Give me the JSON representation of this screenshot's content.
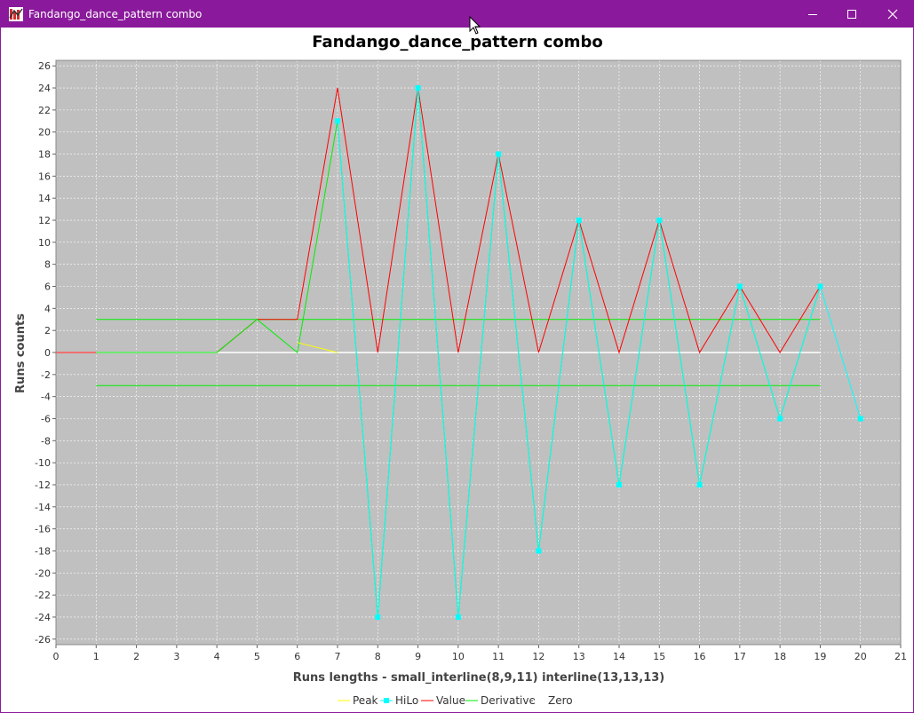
{
  "window": {
    "title": "Fandango_dance_pattern combo",
    "app_icon": "jfreechart-app-icon",
    "controls": [
      "minimize-icon",
      "maximize-icon",
      "close-icon"
    ],
    "titlebar_color": "#8a1a9b"
  },
  "chart_data": {
    "type": "line",
    "title": "Fandango_dance_pattern combo",
    "xlabel": "Runs lengths -  small_interline(8,9,11) interline(13,13,13)",
    "ylabel": "Runs counts",
    "xlim": [
      0,
      21
    ],
    "ylim": [
      -26.5,
      26.5
    ],
    "x_ticks": [
      0,
      1,
      2,
      3,
      4,
      5,
      6,
      7,
      8,
      9,
      10,
      11,
      12,
      13,
      14,
      15,
      16,
      17,
      18,
      19,
      20,
      21
    ],
    "y_ticks": [
      26,
      24,
      22,
      20,
      18,
      16,
      14,
      12,
      10,
      8,
      6,
      4,
      2,
      0,
      -2,
      -4,
      -6,
      -8,
      -10,
      -12,
      -14,
      -16,
      -18,
      -20,
      -22,
      -24,
      -26
    ],
    "grid": true,
    "plot_background": "#c0c0c0",
    "legend_position": "bottom",
    "series": [
      {
        "name": "Zero",
        "color": "#ffffff",
        "marker": false,
        "points": [
          [
            0,
            0
          ],
          [
            19,
            0
          ]
        ]
      },
      {
        "name": "Value",
        "color": "#ff0000",
        "marker": false,
        "points": [
          [
            0,
            0
          ],
          [
            1,
            0
          ],
          [
            2,
            0
          ],
          [
            3,
            0
          ],
          [
            4,
            0
          ],
          [
            5,
            3
          ],
          [
            6,
            3
          ],
          [
            7,
            24
          ],
          [
            8,
            0
          ],
          [
            9,
            24
          ],
          [
            10,
            0
          ],
          [
            11,
            18
          ],
          [
            12,
            0
          ],
          [
            13,
            12
          ],
          [
            14,
            0
          ],
          [
            15,
            12
          ],
          [
            16,
            0
          ],
          [
            17,
            6
          ],
          [
            18,
            0
          ],
          [
            19,
            6
          ]
        ]
      },
      {
        "name": "Derivative",
        "color": "#00ee00",
        "marker": false,
        "points": [
          [
            1,
            0
          ],
          [
            2,
            0
          ],
          [
            3,
            0
          ],
          [
            4,
            0
          ],
          [
            5,
            3
          ],
          [
            6,
            0
          ],
          [
            7,
            21
          ],
          [
            8,
            -24
          ],
          [
            9,
            24
          ],
          [
            10,
            -24
          ],
          [
            11,
            18
          ],
          [
            12,
            -18
          ],
          [
            13,
            12
          ],
          [
            14,
            -12
          ],
          [
            15,
            12
          ],
          [
            16,
            -12
          ],
          [
            17,
            6
          ],
          [
            18,
            -6
          ],
          [
            19,
            6
          ]
        ]
      },
      {
        "name": "Peak",
        "color": "#ffff00",
        "marker": false,
        "points": [
          [
            6,
            0.9
          ],
          [
            7,
            0
          ]
        ]
      },
      {
        "name": "HiLo",
        "color": "#00ffff",
        "marker": true,
        "points": [
          [
            7,
            21
          ],
          [
            8,
            -24
          ],
          [
            9,
            24
          ],
          [
            10,
            -24
          ],
          [
            11,
            18
          ],
          [
            12,
            -18
          ],
          [
            13,
            12
          ],
          [
            14,
            -12
          ],
          [
            15,
            12
          ],
          [
            16,
            -12
          ],
          [
            17,
            6
          ],
          [
            18,
            -6
          ],
          [
            19,
            6
          ],
          [
            20,
            -6
          ]
        ]
      }
    ],
    "threshold_lines": [
      {
        "name": "Derivative",
        "color": "#00ee00",
        "y": 3,
        "x_range": [
          1,
          19
        ]
      },
      {
        "name": "Derivative",
        "color": "#00ee00",
        "y": -3,
        "x_range": [
          1,
          19
        ]
      }
    ],
    "legend": [
      {
        "label": "Peak",
        "color": "#ffff00",
        "marker": false
      },
      {
        "label": "HiLo",
        "color": "#00ffff",
        "marker": true
      },
      {
        "label": "Value",
        "color": "#ff0000",
        "marker": false
      },
      {
        "label": "Derivative",
        "color": "#00ee00",
        "marker": false
      },
      {
        "label": "Zero",
        "color": "#ffffff",
        "marker": false
      }
    ]
  }
}
